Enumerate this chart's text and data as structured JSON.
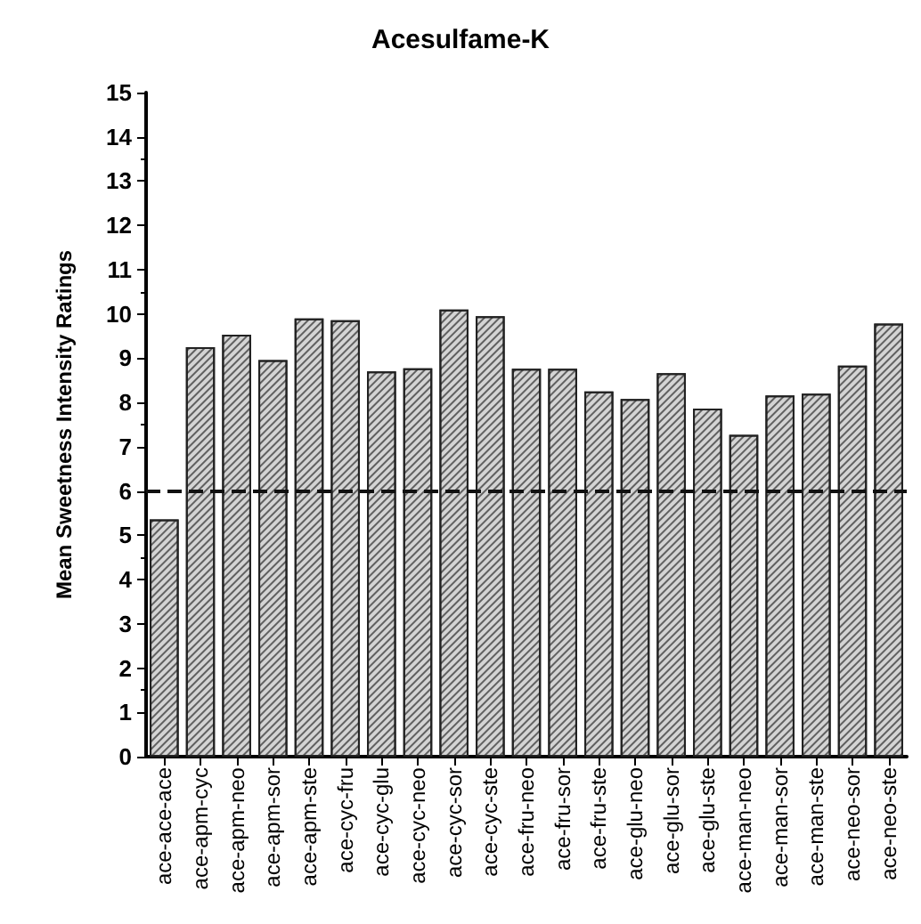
{
  "chart_data": {
    "type": "bar",
    "title": "Acesulfame-K",
    "ylabel": "Mean Sweetness Intensity Ratings",
    "categories": [
      "ace-ace-ace",
      "ace-apm-cyc",
      "ace-apm-neo",
      "ace-apm-sor",
      "ace-apm-ste",
      "ace-cyc-fru",
      "ace-cyc-glu",
      "ace-cyc-neo",
      "ace-cyc-sor",
      "ace-cyc-ste",
      "ace-fru-neo",
      "ace-fru-sor",
      "ace-fru-ste",
      "ace-glu-neo",
      "ace-glu-sor",
      "ace-glu-ste",
      "ace-man-neo",
      "ace-man-sor",
      "ace-man-ste",
      "ace-neo-sor",
      "ace-neo-ste"
    ],
    "values": [
      5.36,
      9.25,
      9.53,
      8.96,
      9.9,
      9.86,
      8.7,
      8.77,
      10.1,
      9.95,
      8.76,
      8.76,
      8.25,
      8.08,
      8.66,
      7.86,
      7.27,
      8.16,
      8.2,
      8.83,
      9.78
    ],
    "color": "#d4d4d4",
    "ylim": [
      0,
      15
    ],
    "yticks": [
      0,
      1,
      2,
      3,
      4,
      5,
      6,
      7,
      8,
      9,
      10,
      11,
      12,
      13,
      14,
      15
    ],
    "ref_lines": [
      {
        "axis": "y",
        "value": 6,
        "line_style": "dashed",
        "color": "#111111"
      }
    ]
  }
}
